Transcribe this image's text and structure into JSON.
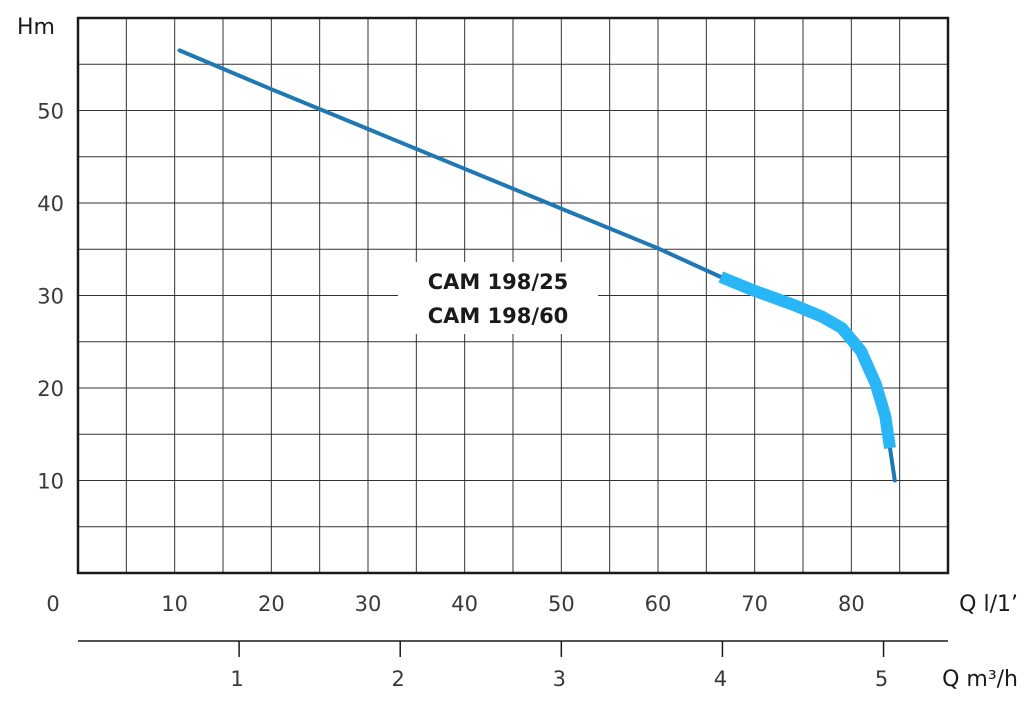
{
  "chart_data": {
    "type": "line",
    "ylabel": "Hm",
    "xlabel": "Q l/1’",
    "secondary_xlabel": "Q m³/h",
    "xlim": [
      0,
      90
    ],
    "ylim": [
      0,
      60
    ],
    "x_ticks": [
      "0",
      "10",
      "20",
      "30",
      "40",
      "50",
      "60",
      "70",
      "80"
    ],
    "y_ticks": [
      "10",
      "20",
      "30",
      "40",
      "50"
    ],
    "secondary_x_ticks": [
      "1",
      "2",
      "3",
      "4",
      "5"
    ],
    "secondary_xlim": [
      0,
      5.4
    ],
    "grid": true,
    "series": [
      {
        "name": "CAM 198/25\nCAM 198/60",
        "labels": [
          "CAM 198/25",
          "CAM 198/60"
        ],
        "x": [
          10.5,
          20,
          30,
          40,
          50,
          60,
          66.5,
          70,
          74,
          77,
          79,
          81,
          82.5,
          83.5,
          84,
          84.5
        ],
        "y": [
          56.5,
          52.3,
          48,
          43.7,
          39.4,
          35.1,
          32,
          30.5,
          29,
          27.7,
          26.5,
          24,
          20.5,
          17,
          13.5,
          10
        ],
        "highlight_range": [
          66.5,
          84
        ]
      }
    ],
    "colors": {
      "line": "#1f77b4",
      "highlight": "#29b6f6",
      "grid": "#333333",
      "frame": "#1a1a1a"
    }
  }
}
